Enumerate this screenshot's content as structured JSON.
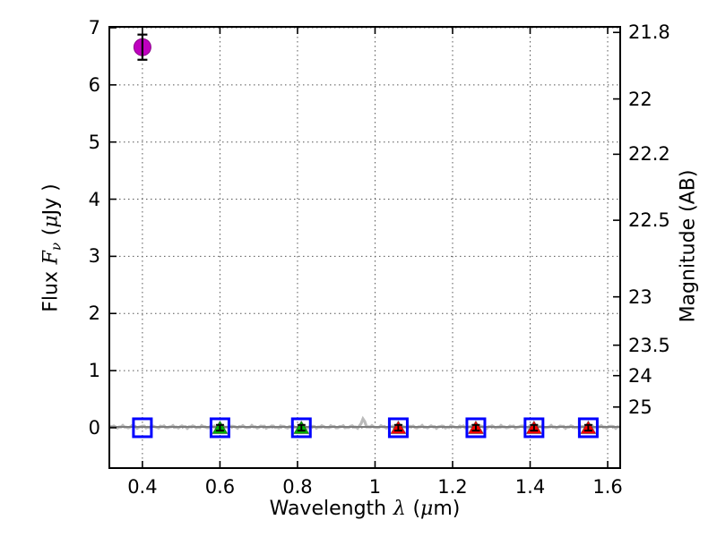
{
  "figure": {
    "background": "#ffffff"
  },
  "labels": {
    "xlabel": {
      "t1": "Wavelength",
      "lam": "λ",
      "t2": "(",
      "mu": "μ",
      "t3": "m)"
    },
    "ylabel_left": {
      "t1": "Flux",
      "F": "F",
      "nu": "ν",
      "t2": "(",
      "mu": "μ",
      "t3": "Jy )"
    },
    "ylabel_right": "Magnitude (AB)"
  },
  "chart_data": {
    "type": "scatter",
    "title": "",
    "xlabel": "Wavelength λ (μm)",
    "ylabel": "Flux Fν ( μJy )",
    "ylabel_right": "Magnitude (AB)",
    "xlim": [
      0.317,
      1.63
    ],
    "ylim": [
      -0.69,
      7.0
    ],
    "grid": {
      "on": true,
      "linestyle": "dotted",
      "color": "#555555"
    },
    "axis_color": "#000000",
    "x_ticks": {
      "values": [
        0.4,
        0.6,
        0.8,
        1.0,
        1.2,
        1.4,
        1.6
      ],
      "labels": [
        "0.4",
        "0.6",
        "0.8",
        "1",
        "1.2",
        "1.4",
        "1.6"
      ]
    },
    "y_ticks_left": {
      "values": [
        0,
        1,
        2,
        3,
        4,
        5,
        6,
        7
      ],
      "labels": [
        "0",
        "1",
        "2",
        "3",
        "4",
        "5",
        "6",
        "7"
      ]
    },
    "y_ticks_right": {
      "mag_labels": [
        "21.8",
        "22",
        "22.2",
        "22.5",
        "23",
        "23.5",
        "24",
        "25"
      ],
      "flux_values": [
        6.918,
        5.754,
        4.786,
        3.631,
        2.291,
        1.445,
        0.912,
        0.363
      ]
    },
    "series": [
      {
        "name": "optical-photometry-triangles",
        "marker": "filled-triangle-up",
        "color": "#00b000",
        "error_color": "#000000",
        "points": [
          {
            "x": 0.6,
            "y": 0.0,
            "yerr": 0.05
          },
          {
            "x": 0.81,
            "y": 0.0,
            "yerr": 0.05
          }
        ]
      },
      {
        "name": "infrared-photometry-triangles",
        "marker": "filled-triangle-up",
        "color": "#ff0000",
        "error_color": "#000000",
        "points": [
          {
            "x": 1.06,
            "y": 0.0,
            "yerr": 0.05
          },
          {
            "x": 1.26,
            "y": 0.0,
            "yerr": 0.05
          },
          {
            "x": 1.41,
            "y": 0.0,
            "yerr": 0.05
          },
          {
            "x": 1.55,
            "y": 0.0,
            "yerr": 0.05
          }
        ]
      },
      {
        "name": "model-photometry-squares",
        "marker": "open-square",
        "color": "#0000ff",
        "points": [
          {
            "x": 0.4,
            "y": 0.0
          },
          {
            "x": 0.6,
            "y": 0.0
          },
          {
            "x": 0.81,
            "y": 0.0
          },
          {
            "x": 1.06,
            "y": 0.0
          },
          {
            "x": 1.26,
            "y": 0.0
          },
          {
            "x": 1.41,
            "y": 0.0
          },
          {
            "x": 1.55,
            "y": 0.0
          }
        ]
      },
      {
        "name": "detected-flux-circle",
        "marker": "filled-circle",
        "color": "#bf00bf",
        "edge_color": "#8a008a",
        "error_color": "#000000",
        "points": [
          {
            "x": 0.4,
            "y": 6.66,
            "yerr": 0.22
          }
        ]
      }
    ],
    "spectrum": {
      "name": "model-spectrum-line",
      "baseline_flux": 0.015,
      "noise_amplitude": 0.03,
      "emission_line_x": 0.97,
      "emission_line_height": 0.13,
      "color_noisy": "#bbbbbb",
      "color_smooth": "#7d7d7d"
    }
  }
}
